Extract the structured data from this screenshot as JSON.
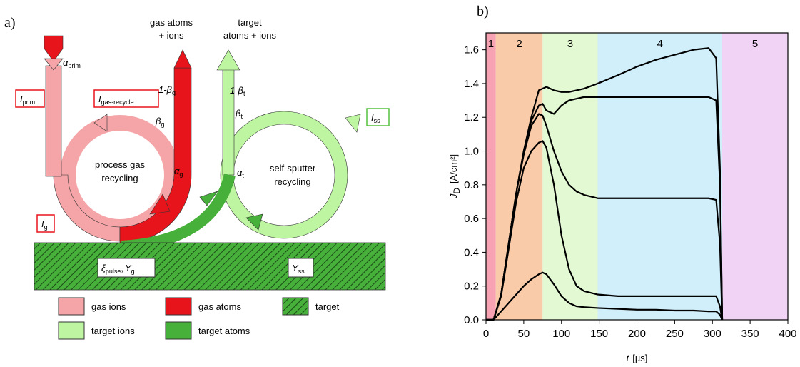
{
  "diagram": {
    "panel_label": "a)",
    "process_loop": [
      "process gas",
      "recycling"
    ],
    "sputter_loop": [
      "self-sputter",
      "recycling"
    ],
    "gas_output": [
      "gas atoms",
      "+ ions"
    ],
    "target_output": [
      "target",
      "atoms + ions"
    ],
    "symbols": {
      "alpha_prim": {
        "symbol": "α",
        "subscript": "prim"
      },
      "i_prim": {
        "symbol": "I",
        "subscript": "prim"
      },
      "i_gas_recycle": {
        "symbol": "I",
        "subscript": "gas-recycle"
      },
      "one_minus_beta_g": {
        "symbol": "1-β",
        "subscript": "g"
      },
      "beta_g": {
        "symbol": "β",
        "subscript": "g"
      },
      "alpha_g": {
        "symbol": "α",
        "subscript": "g"
      },
      "one_minus_beta_t": {
        "symbol": "1-β",
        "subscript": "t"
      },
      "beta_t": {
        "symbol": "β",
        "subscript": "t"
      },
      "alpha_t": {
        "symbol": "α",
        "subscript": "t"
      },
      "i_ss": {
        "symbol": "I",
        "subscript": "ss"
      },
      "i_g": {
        "symbol": "I",
        "subscript": "g"
      },
      "xi_pulse": {
        "symbol": "ξ",
        "subscript": "pulse"
      },
      "separator": ",",
      "y_g": {
        "symbol": "Y",
        "subscript": "g"
      },
      "y_ss": {
        "symbol": "Y",
        "subscript": "ss"
      }
    },
    "legend": [
      "gas ions",
      "gas atoms",
      "target",
      "target ions",
      "target atoms"
    ]
  },
  "chart_data": {
    "type": "line",
    "panel_label": "b)",
    "xlabel": {
      "symbol": "t",
      "unit": "[µs]"
    },
    "ylabel": {
      "symbol": "J",
      "subscript": "D",
      "unit": "[A/cm²]"
    },
    "xlim": [
      0,
      400
    ],
    "ylim": [
      0,
      1.7
    ],
    "xticks": [
      0,
      50,
      100,
      150,
      200,
      250,
      300,
      350,
      400
    ],
    "yticks": [
      {
        "value": 0,
        "label": "0.0"
      },
      0.2,
      0.4,
      0.6,
      0.8,
      {
        "value": 1,
        "label": "1.0"
      },
      1.2,
      1.4,
      1.6
    ],
    "regions": [
      {
        "label": "1",
        "x": [
          0,
          13
        ],
        "color": "#f7a3b4"
      },
      {
        "label": "2",
        "x": [
          13,
          75
        ],
        "color": "#f9cba9"
      },
      {
        "label": "3",
        "x": [
          75,
          148
        ],
        "color": "#e2f9d3"
      },
      {
        "label": "4",
        "x": [
          148,
          313
        ],
        "color": "#d0effa"
      },
      {
        "label": "5",
        "x": [
          313,
          400
        ],
        "color": "#f1d3f6"
      }
    ],
    "x": [
      0,
      10,
      20,
      30,
      40,
      50,
      60,
      70,
      75,
      80,
      90,
      100,
      110,
      120,
      130,
      148,
      175,
      200,
      225,
      250,
      275,
      295,
      305,
      310,
      313
    ],
    "series": [
      {
        "color": "#000000",
        "values": [
          0,
          0,
          0.15,
          0.45,
          0.75,
          1.0,
          1.2,
          1.36,
          1.37,
          1.38,
          1.36,
          1.35,
          1.35,
          1.36,
          1.37,
          1.4,
          1.45,
          1.5,
          1.54,
          1.57,
          1.6,
          1.61,
          1.55,
          0.9,
          0
        ]
      },
      {
        "color": "#000000",
        "values": [
          0,
          0,
          0.15,
          0.45,
          0.75,
          1.0,
          1.18,
          1.27,
          1.28,
          1.24,
          1.22,
          1.27,
          1.3,
          1.31,
          1.32,
          1.32,
          1.32,
          1.32,
          1.32,
          1.32,
          1.32,
          1.32,
          1.3,
          0.8,
          0
        ]
      },
      {
        "color": "#000000",
        "values": [
          0,
          0,
          0.15,
          0.45,
          0.75,
          0.98,
          1.15,
          1.22,
          1.21,
          1.15,
          1.0,
          0.88,
          0.8,
          0.76,
          0.74,
          0.72,
          0.72,
          0.72,
          0.72,
          0.72,
          0.72,
          0.72,
          0.71,
          0.45,
          0
        ]
      },
      {
        "color": "#000000",
        "values": [
          0,
          0,
          0.14,
          0.42,
          0.7,
          0.9,
          1.0,
          1.05,
          1.06,
          1.02,
          0.8,
          0.5,
          0.3,
          0.2,
          0.17,
          0.15,
          0.14,
          0.14,
          0.14,
          0.14,
          0.14,
          0.14,
          0.14,
          0.08,
          0
        ]
      },
      {
        "color": "#000000",
        "values": [
          0,
          0,
          0.05,
          0.1,
          0.15,
          0.2,
          0.24,
          0.27,
          0.28,
          0.27,
          0.21,
          0.14,
          0.1,
          0.08,
          0.075,
          0.07,
          0.065,
          0.06,
          0.06,
          0.055,
          0.055,
          0.05,
          0.05,
          0.03,
          0
        ]
      }
    ]
  }
}
